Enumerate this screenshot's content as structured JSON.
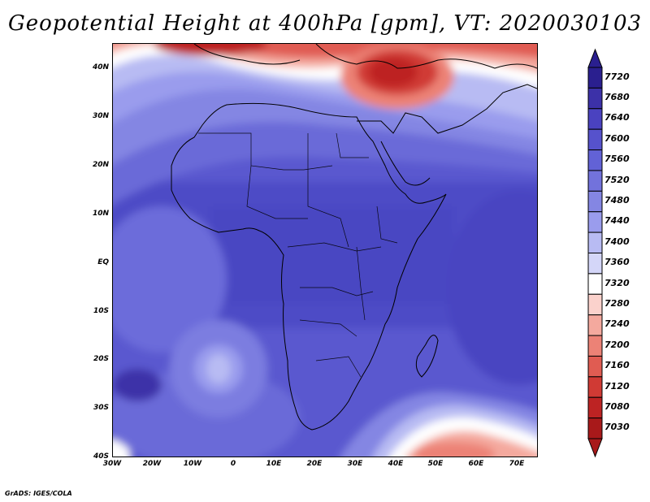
{
  "title": "Geopotential Height at 400hPa [gpm], VT: 2020030103",
  "credit": "GrADS: IGES/COLA",
  "axes": {
    "lat_labels": [
      "40N",
      "30N",
      "20N",
      "10N",
      "EQ",
      "10S",
      "20S",
      "30S",
      "40S"
    ],
    "lon_labels": [
      "30W",
      "20W",
      "10W",
      "0",
      "10E",
      "20E",
      "30E",
      "40E",
      "50E",
      "60E",
      "70E"
    ]
  },
  "colorbar": {
    "levels": [
      "7720",
      "7680",
      "7640",
      "7600",
      "7560",
      "7520",
      "7480",
      "7440",
      "7400",
      "7360",
      "7320",
      "7280",
      "7240",
      "7200",
      "7160",
      "7120",
      "7080",
      "7030"
    ],
    "colors": [
      "#2a1f8f",
      "#3c31a8",
      "#4a42c0",
      "#5652cc",
      "#6262d6",
      "#7272dc",
      "#8486e3",
      "#9a9ced",
      "#b8bbf3",
      "#d4d6f8",
      "#ffffff",
      "#fbd2cc",
      "#f4a99e",
      "#ec8276",
      "#e05c52",
      "#d03a34",
      "#bd2323",
      "#a8191a"
    ]
  }
}
